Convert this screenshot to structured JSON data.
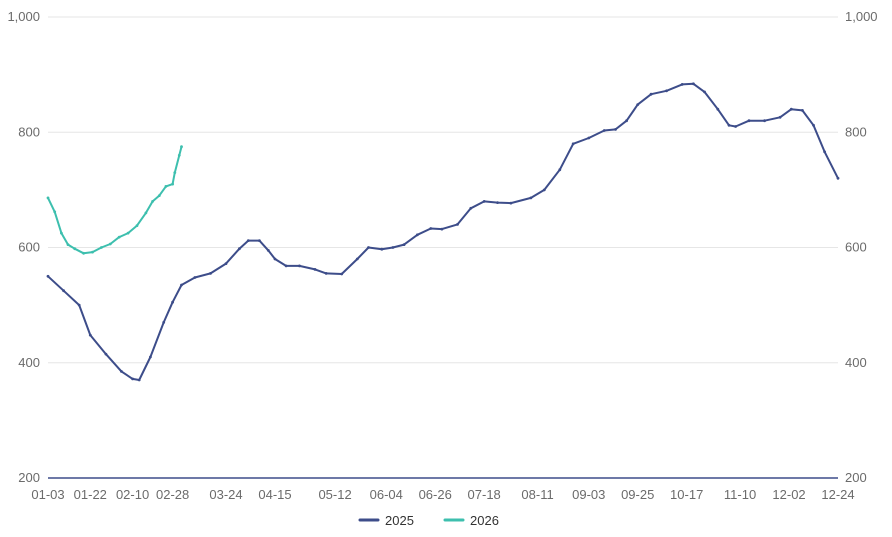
{
  "chart_data": {
    "type": "line",
    "title": "",
    "xlabel": "",
    "ylabel": "",
    "x_ticks": [
      "01-03",
      "01-22",
      "02-10",
      "02-28",
      "03-24",
      "04-15",
      "05-12",
      "06-04",
      "06-26",
      "07-18",
      "08-11",
      "09-03",
      "09-25",
      "10-17",
      "11-10",
      "12-02",
      "12-24"
    ],
    "y_ticks": [
      "200",
      "400",
      "600",
      "800",
      "1,000"
    ],
    "ylim": [
      200,
      1000
    ],
    "grid": true,
    "dual_y_axis": true,
    "legend_position": "bottom",
    "series": [
      {
        "name": "2025",
        "color": "#3d4d8a",
        "points": [
          [
            "01-03",
            550
          ],
          [
            "01-10",
            525
          ],
          [
            "01-17",
            500
          ],
          [
            "01-22",
            448
          ],
          [
            "01-29",
            415
          ],
          [
            "02-05",
            385
          ],
          [
            "02-10",
            372
          ],
          [
            "02-13",
            370
          ],
          [
            "02-18",
            410
          ],
          [
            "02-24",
            470
          ],
          [
            "02-28",
            505
          ],
          [
            "03-04",
            535
          ],
          [
            "03-10",
            548
          ],
          [
            "03-17",
            555
          ],
          [
            "03-24",
            572
          ],
          [
            "03-30",
            598
          ],
          [
            "04-03",
            612
          ],
          [
            "04-08",
            612
          ],
          [
            "04-12",
            595
          ],
          [
            "04-15",
            580
          ],
          [
            "04-20",
            568
          ],
          [
            "04-26",
            568
          ],
          [
            "05-03",
            562
          ],
          [
            "05-08",
            555
          ],
          [
            "05-15",
            554
          ],
          [
            "05-22",
            580
          ],
          [
            "05-27",
            600
          ],
          [
            "06-02",
            597
          ],
          [
            "06-07",
            600
          ],
          [
            "06-12",
            605
          ],
          [
            "06-18",
            622
          ],
          [
            "06-24",
            633
          ],
          [
            "06-29",
            632
          ],
          [
            "07-06",
            640
          ],
          [
            "07-12",
            668
          ],
          [
            "07-18",
            680
          ],
          [
            "07-24",
            678
          ],
          [
            "07-30",
            677
          ],
          [
            "08-08",
            686
          ],
          [
            "08-14",
            700
          ],
          [
            "08-21",
            735
          ],
          [
            "08-27",
            780
          ],
          [
            "09-03",
            790
          ],
          [
            "09-10",
            803
          ],
          [
            "09-15",
            805
          ],
          [
            "09-20",
            820
          ],
          [
            "09-25",
            848
          ],
          [
            "10-01",
            866
          ],
          [
            "10-08",
            872
          ],
          [
            "10-15",
            883
          ],
          [
            "10-20",
            884
          ],
          [
            "10-25",
            870
          ],
          [
            "10-31",
            840
          ],
          [
            "11-05",
            812
          ],
          [
            "11-08",
            810
          ],
          [
            "11-14",
            820
          ],
          [
            "11-21",
            820
          ],
          [
            "11-28",
            826
          ],
          [
            "12-03",
            840
          ],
          [
            "12-08",
            838
          ],
          [
            "12-13",
            812
          ],
          [
            "12-18",
            766
          ],
          [
            "12-24",
            720
          ]
        ]
      },
      {
        "name": "2026",
        "color": "#3dbfae",
        "points": [
          [
            "01-03",
            686
          ],
          [
            "01-06",
            662
          ],
          [
            "01-09",
            625
          ],
          [
            "01-12",
            605
          ],
          [
            "01-15",
            598
          ],
          [
            "01-19",
            590
          ],
          [
            "01-23",
            592
          ],
          [
            "01-27",
            600
          ],
          [
            "01-31",
            606
          ],
          [
            "02-04",
            618
          ],
          [
            "02-08",
            625
          ],
          [
            "02-12",
            638
          ],
          [
            "02-16",
            660
          ],
          [
            "02-19",
            680
          ],
          [
            "02-22",
            690
          ],
          [
            "02-25",
            706
          ],
          [
            "02-28",
            710
          ],
          [
            "03-01",
            730
          ],
          [
            "03-03",
            760
          ],
          [
            "03-04",
            775
          ]
        ]
      }
    ]
  },
  "legend": {
    "items": [
      {
        "label": "2025",
        "color": "#3d4d8a"
      },
      {
        "label": "2026",
        "color": "#3dbfae"
      }
    ]
  },
  "colors": {
    "grid": "#e6e6e6",
    "baseline": "#3d4d8a",
    "tick_text": "#6b6b6b"
  }
}
